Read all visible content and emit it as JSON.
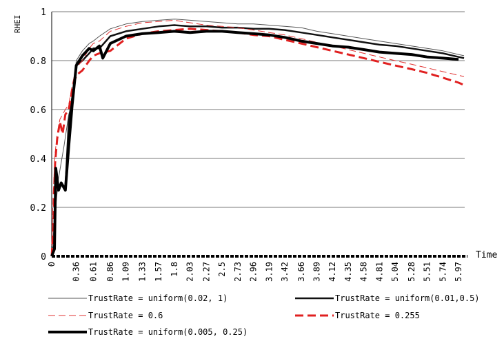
{
  "chart_data": {
    "type": "line",
    "title": "",
    "xlabel": "Time",
    "ylabel": "RHEI",
    "ylim": [
      0,
      1
    ],
    "yticks": [
      "0",
      "0.2",
      "0.4",
      "0.6",
      "0.8",
      "1"
    ],
    "xticks": [
      "0",
      "0.36",
      "0.61",
      "0.86",
      "1.09",
      "1.33",
      "1.57",
      "1.8",
      "2.03",
      "2.27",
      "2.5",
      "2.73",
      "2.96",
      "3.19",
      "3.42",
      "3.66",
      "3.89",
      "4.12",
      "4.35",
      "4.58",
      "4.81",
      "5.04",
      "5.28",
      "5.51",
      "5.74",
      "5.97"
    ],
    "grid": true,
    "legend_position": "bottom",
    "series": [
      {
        "name": "TrustRate = uniform(0.02, 1)",
        "style": "thin-solid",
        "color": "#555555",
        "x": [
          0,
          0.04,
          0.1,
          0.18,
          0.25,
          0.3,
          0.36,
          0.45,
          0.55,
          0.61,
          0.7,
          0.86,
          1.09,
          1.33,
          1.57,
          1.8,
          2.03,
          2.27,
          2.5,
          2.73,
          2.96,
          3.19,
          3.42,
          3.66,
          3.89,
          4.12,
          4.35,
          4.58,
          4.81,
          5.04,
          5.28,
          5.51,
          5.74,
          5.97,
          6.05
        ],
        "values": [
          0.0,
          0.15,
          0.32,
          0.45,
          0.58,
          0.63,
          0.8,
          0.84,
          0.87,
          0.88,
          0.9,
          0.93,
          0.95,
          0.96,
          0.965,
          0.97,
          0.965,
          0.96,
          0.955,
          0.95,
          0.95,
          0.945,
          0.94,
          0.935,
          0.92,
          0.91,
          0.9,
          0.89,
          0.88,
          0.87,
          0.86,
          0.85,
          0.84,
          0.825,
          0.82
        ]
      },
      {
        "name": "TrustRate = uniform(0.01,0.5)",
        "style": "medium-solid",
        "color": "#111111",
        "x": [
          0,
          0.04,
          0.06,
          0.1,
          0.14,
          0.2,
          0.25,
          0.3,
          0.36,
          0.45,
          0.55,
          0.61,
          0.7,
          0.86,
          1.09,
          1.33,
          1.57,
          1.8,
          2.03,
          2.27,
          2.5,
          2.73,
          2.96,
          3.19,
          3.42,
          3.66,
          3.89,
          4.12,
          4.35,
          4.58,
          4.81,
          5.04,
          5.28,
          5.51,
          5.74,
          5.97,
          6.05
        ],
        "values": [
          0.0,
          0.05,
          0.32,
          0.28,
          0.3,
          0.28,
          0.55,
          0.65,
          0.78,
          0.8,
          0.83,
          0.85,
          0.85,
          0.9,
          0.92,
          0.93,
          0.94,
          0.945,
          0.94,
          0.94,
          0.935,
          0.935,
          0.93,
          0.93,
          0.925,
          0.915,
          0.905,
          0.895,
          0.885,
          0.875,
          0.865,
          0.86,
          0.85,
          0.84,
          0.83,
          0.815,
          0.81
        ]
      },
      {
        "name": "TrustRate = 0.6",
        "style": "thin-dashed",
        "color": "#e03030",
        "x": [
          0,
          0.02,
          0.05,
          0.08,
          0.12,
          0.16,
          0.2,
          0.25,
          0.3,
          0.36,
          0.45,
          0.55,
          0.61,
          0.7,
          0.86,
          1.09,
          1.33,
          1.57,
          1.8,
          2.03,
          2.27,
          2.5,
          2.73,
          2.96,
          3.19,
          3.42,
          3.66,
          3.89,
          4.12,
          4.35,
          4.58,
          4.81,
          5.04,
          5.28,
          5.51,
          5.74,
          5.97,
          6.05
        ],
        "values": [
          0.0,
          0.25,
          0.42,
          0.5,
          0.56,
          0.58,
          0.6,
          0.62,
          0.7,
          0.77,
          0.8,
          0.85,
          0.87,
          0.88,
          0.92,
          0.94,
          0.955,
          0.96,
          0.965,
          0.955,
          0.945,
          0.94,
          0.935,
          0.925,
          0.915,
          0.905,
          0.89,
          0.875,
          0.86,
          0.845,
          0.83,
          0.815,
          0.8,
          0.785,
          0.77,
          0.755,
          0.74,
          0.735
        ]
      },
      {
        "name": "TrustRate = 0.255",
        "style": "thick-dashed",
        "color": "#e02020",
        "x": [
          0,
          0.02,
          0.05,
          0.08,
          0.12,
          0.16,
          0.2,
          0.25,
          0.3,
          0.36,
          0.45,
          0.55,
          0.61,
          0.7,
          0.86,
          1.09,
          1.33,
          1.57,
          1.8,
          2.03,
          2.27,
          2.5,
          2.73,
          2.96,
          3.19,
          3.42,
          3.66,
          3.89,
          4.12,
          4.35,
          4.58,
          4.81,
          5.04,
          5.28,
          5.51,
          5.74,
          5.97,
          6.05
        ],
        "values": [
          0.0,
          0.1,
          0.38,
          0.48,
          0.55,
          0.5,
          0.58,
          0.6,
          0.68,
          0.74,
          0.76,
          0.8,
          0.82,
          0.83,
          0.84,
          0.89,
          0.91,
          0.92,
          0.925,
          0.93,
          0.925,
          0.92,
          0.915,
          0.905,
          0.9,
          0.885,
          0.87,
          0.855,
          0.84,
          0.825,
          0.81,
          0.795,
          0.78,
          0.765,
          0.75,
          0.73,
          0.71,
          0.7
        ]
      },
      {
        "name": "TrustRate = uniform(0.005, 0.25)",
        "style": "thick-solid",
        "color": "#000000",
        "x": [
          0,
          0.04,
          0.06,
          0.1,
          0.14,
          0.2,
          0.25,
          0.3,
          0.36,
          0.45,
          0.55,
          0.61,
          0.7,
          0.75,
          0.86,
          1.09,
          1.33,
          1.57,
          1.8,
          2.03,
          2.27,
          2.5,
          2.73,
          2.96,
          3.19,
          3.42,
          3.66,
          3.89,
          4.12,
          4.35,
          4.58,
          4.81,
          5.04,
          5.28,
          5.51,
          5.74,
          5.97
        ],
        "values": [
          0.0,
          0.03,
          0.36,
          0.27,
          0.3,
          0.27,
          0.45,
          0.62,
          0.78,
          0.82,
          0.85,
          0.84,
          0.86,
          0.81,
          0.87,
          0.9,
          0.91,
          0.915,
          0.92,
          0.915,
          0.92,
          0.92,
          0.915,
          0.91,
          0.905,
          0.895,
          0.88,
          0.87,
          0.86,
          0.855,
          0.845,
          0.835,
          0.83,
          0.825,
          0.815,
          0.81,
          0.805
        ]
      }
    ]
  }
}
